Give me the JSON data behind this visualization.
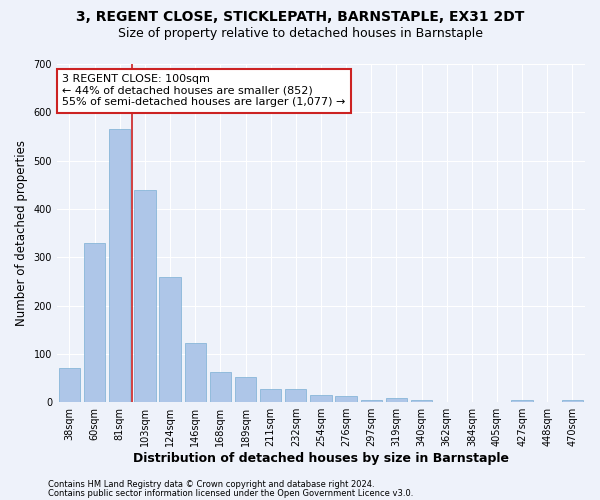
{
  "title1": "3, REGENT CLOSE, STICKLEPATH, BARNSTAPLE, EX31 2DT",
  "title2": "Size of property relative to detached houses in Barnstaple",
  "xlabel": "Distribution of detached houses by size in Barnstaple",
  "ylabel": "Number of detached properties",
  "categories": [
    "38sqm",
    "60sqm",
    "81sqm",
    "103sqm",
    "124sqm",
    "146sqm",
    "168sqm",
    "189sqm",
    "211sqm",
    "232sqm",
    "254sqm",
    "276sqm",
    "297sqm",
    "319sqm",
    "340sqm",
    "362sqm",
    "384sqm",
    "405sqm",
    "427sqm",
    "448sqm",
    "470sqm"
  ],
  "values": [
    70,
    330,
    565,
    440,
    260,
    123,
    63,
    53,
    28,
    28,
    15,
    13,
    5,
    8,
    5,
    0,
    0,
    0,
    5,
    0,
    5
  ],
  "bar_color": "#aec6e8",
  "bar_edge_color": "#7bafd4",
  "vline_x_index": 2.5,
  "vline_color": "#cc2222",
  "annotation_text": "3 REGENT CLOSE: 100sqm\n← 44% of detached houses are smaller (852)\n55% of semi-detached houses are larger (1,077) →",
  "annotation_box_color": "#ffffff",
  "annotation_box_edge": "#cc2222",
  "ylim": [
    0,
    700
  ],
  "yticks": [
    0,
    100,
    200,
    300,
    400,
    500,
    600,
    700
  ],
  "footnote1": "Contains HM Land Registry data © Crown copyright and database right 2024.",
  "footnote2": "Contains public sector information licensed under the Open Government Licence v3.0.",
  "background_color": "#eef2fa",
  "grid_color": "#ffffff",
  "title1_fontsize": 10,
  "title2_fontsize": 9,
  "tick_fontsize": 7,
  "ylabel_fontsize": 8.5,
  "xlabel_fontsize": 9,
  "annotation_fontsize": 8,
  "footnote_fontsize": 6
}
